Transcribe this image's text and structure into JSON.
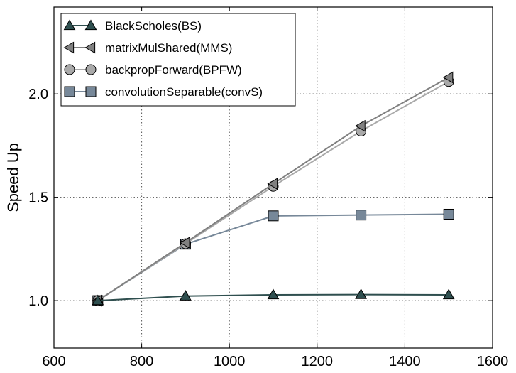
{
  "chart_data": {
    "type": "line",
    "title": "",
    "xlabel": "",
    "ylabel": "Speed Up",
    "xlim": [
      600,
      1600
    ],
    "ylim": [
      0.77,
      2.42
    ],
    "xticks": [
      600,
      800,
      1000,
      1200,
      1400,
      1600
    ],
    "yticks": [
      1.0,
      1.5,
      2.0
    ],
    "ytick_labels": [
      "1.0",
      "1.5",
      "2.0"
    ],
    "grid": true,
    "legend_position": "top-left",
    "x": [
      700,
      900,
      1100,
      1300,
      1500
    ],
    "series": [
      {
        "name": "BlackScholes(BS)",
        "marker": "triangle-up",
        "color": "#2f4f4f",
        "values": [
          1.0,
          1.022,
          1.028,
          1.029,
          1.028
        ]
      },
      {
        "name": "matrixMulShared(MMS)",
        "marker": "triangle-left",
        "color": "#808080",
        "values": [
          1.0,
          1.28,
          1.565,
          1.845,
          2.08
        ]
      },
      {
        "name": "backpropForward(BPFW)",
        "marker": "circle",
        "color": "#a9a9a9",
        "values": [
          1.0,
          1.275,
          1.553,
          1.82,
          2.06
        ]
      },
      {
        "name": "convolutionSeparable(convS)",
        "marker": "square",
        "color": "#778899",
        "values": [
          1.0,
          1.273,
          1.41,
          1.414,
          1.418
        ]
      }
    ]
  }
}
